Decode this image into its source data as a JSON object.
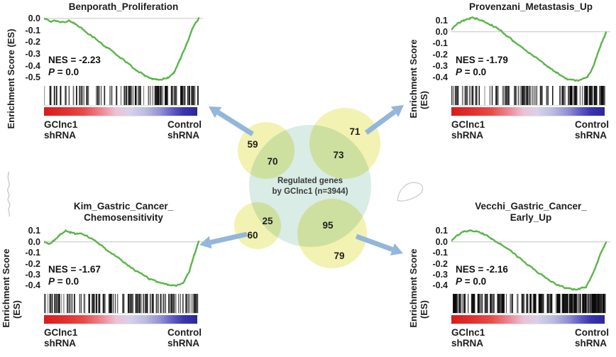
{
  "colors": {
    "curve_green": "#5cb54a",
    "zero_line_gray": "#c4c4c4",
    "separator_gray": "#e2e2e2",
    "arrow_blue": "#93b6db",
    "venn_yellow": "#f2f2b2",
    "venn_teal": "#d9ece5",
    "barcode_black": "#0a0a0a",
    "text_dark": "#1d1d1d",
    "gradient_stops": [
      [
        "#dc1a1a",
        0
      ],
      [
        "#e23030",
        14
      ],
      [
        "#e84b48",
        26
      ],
      [
        "#ee8a96",
        38
      ],
      [
        "#ecc2d4",
        47
      ],
      [
        "#d8d0ea",
        56
      ],
      [
        "#bcbce0",
        66
      ],
      [
        "#9090d4",
        76
      ],
      [
        "#5e5cc4",
        84
      ],
      [
        "#3a36ae",
        91
      ],
      [
        "#2a26a0",
        100
      ]
    ]
  },
  "venn": {
    "center_line1": "Regulated genes",
    "center_line2": "by GClnc1 (n=3944)",
    "counts": {
      "tl_out": "59",
      "tl_in": "70",
      "tr_out": "71",
      "tr_in": "73",
      "bl_out": "60",
      "bl_in": "25",
      "br_out": "79",
      "br_in": "95"
    }
  },
  "chart_data": [
    {
      "type": "line",
      "position": "top-left",
      "title_lines": [
        "Benporath_Proliferation"
      ],
      "ylabel_lines": [
        "Enrichment Score (ES)"
      ],
      "ytick_labels": [
        "0.0",
        "-0.1",
        "-0.2",
        "-0.3",
        "-0.4",
        "-0.5"
      ],
      "yticks": [
        0,
        -0.1,
        -0.2,
        -0.3,
        -0.4,
        -0.5
      ],
      "es_top": 0.035,
      "es_bottom": -0.565,
      "ylim": [
        -0.55,
        0.0
      ],
      "nes": "NES = -2.23",
      "p_sym": "P",
      "p_val": " = 0.0",
      "xlabel_left": [
        "GClnc1",
        "shRNA"
      ],
      "xlabel_right": [
        "Control",
        "shRNA"
      ],
      "x": [
        0,
        0.04,
        0.08,
        0.12,
        0.16,
        0.2,
        0.3,
        0.4,
        0.5,
        0.6,
        0.65,
        0.7,
        0.73,
        0.77,
        0.8,
        0.84,
        0.88,
        0.92,
        0.96,
        1
      ],
      "y": [
        0,
        -0.025,
        -0.02,
        -0.035,
        -0.02,
        -0.045,
        -0.14,
        -0.24,
        -0.34,
        -0.44,
        -0.48,
        -0.51,
        -0.52,
        -0.515,
        -0.5,
        -0.46,
        -0.35,
        -0.22,
        -0.09,
        0
      ],
      "barcode": {
        "seed": 7,
        "count": 100,
        "weight": 1.3,
        "right_bias": true
      }
    },
    {
      "type": "line",
      "position": "top-right",
      "title_lines": [
        "Provenzani_Metastasis_Up"
      ],
      "ylabel_lines": [
        "Enrichment Score",
        "(ES)"
      ],
      "ytick_labels": [
        "0.1",
        "0.0",
        "-0.1",
        "-0.2",
        "-0.3",
        "-0.4"
      ],
      "yticks": [
        0.1,
        0,
        -0.1,
        -0.2,
        -0.3,
        -0.4
      ],
      "es_top": 0.155,
      "es_bottom": -0.47,
      "ylim": [
        -0.43,
        0.12
      ],
      "nes": "NES = -1.79",
      "p_sym": "P",
      "p_val": " = 0.0",
      "xlabel_left": [
        "GClnc1",
        "shRNA"
      ],
      "xlabel_right": [
        "Control",
        "shRNA"
      ],
      "x": [
        0,
        0.04,
        0.08,
        0.12,
        0.16,
        0.2,
        0.26,
        0.33,
        0.4,
        0.5,
        0.6,
        0.68,
        0.75,
        0.8,
        0.84,
        0.88,
        0.91,
        0.94,
        0.97,
        1
      ],
      "y": [
        0.02,
        0.07,
        0.1,
        0.12,
        0.115,
        0.1,
        0.06,
        0,
        -0.08,
        -0.18,
        -0.28,
        -0.36,
        -0.415,
        -0.43,
        -0.425,
        -0.4,
        -0.32,
        -0.22,
        -0.1,
        -0.01
      ],
      "barcode": {
        "seed": 13,
        "count": 125,
        "weight": 1.4,
        "right_bias": true
      }
    },
    {
      "type": "line",
      "position": "bottom-left",
      "title_lines": [
        "Kim_Gastric_Cancer_",
        "Chemosensitivity"
      ],
      "ylabel_lines": [
        "Enrichment Score",
        "(ES)"
      ],
      "ytick_labels": [
        "0.1",
        "0.0",
        "-0.1",
        "-0.2",
        "-0.3",
        "-0.4"
      ],
      "yticks": [
        0.1,
        0,
        -0.1,
        -0.2,
        -0.3,
        -0.4
      ],
      "es_top": 0.155,
      "es_bottom": -0.47,
      "ylim": [
        -0.4,
        0.11
      ],
      "nes": "NES = -1.67",
      "p_sym": "P",
      "p_val": " = 0.0",
      "xlabel_left": [
        "GClnc1",
        "shRNA"
      ],
      "xlabel_right": [
        "Control",
        "shRNA"
      ],
      "x": [
        0,
        0.03,
        0.06,
        0.1,
        0.14,
        0.17,
        0.2,
        0.24,
        0.28,
        0.33,
        0.4,
        0.5,
        0.6,
        0.68,
        0.74,
        0.8,
        0.86,
        0.9,
        0.94,
        0.97,
        1
      ],
      "y": [
        0,
        -0.02,
        0.01,
        0.06,
        0.11,
        0.09,
        0.07,
        0.08,
        0.05,
        0.01,
        -0.07,
        -0.17,
        -0.27,
        -0.34,
        -0.375,
        -0.39,
        -0.4,
        -0.37,
        -0.27,
        -0.12,
        0
      ],
      "barcode": {
        "seed": 21,
        "count": 115,
        "weight": 1.4,
        "right_bias": false
      }
    },
    {
      "type": "line",
      "position": "bottom-right",
      "title_lines": [
        "Vecchi_Gastric_Cancer_",
        "Early_Up"
      ],
      "ylabel_lines": [
        "Enrichment Score",
        "(ES)"
      ],
      "ytick_labels": [
        "0.1",
        "0.0",
        "-0.1",
        "-0.2",
        "-0.3",
        "-0.4"
      ],
      "yticks": [
        0.1,
        0,
        -0.1,
        -0.2,
        -0.3,
        -0.4
      ],
      "es_top": 0.155,
      "es_bottom": -0.47,
      "ylim": [
        -0.435,
        0.1
      ],
      "nes": "NES = -2.16",
      "p_sym": "P",
      "p_val": " = 0.0",
      "xlabel_left": [
        "GClnc1",
        "shRNA"
      ],
      "xlabel_right": [
        "Control",
        "shRNA"
      ],
      "x": [
        0,
        0.04,
        0.08,
        0.12,
        0.16,
        0.2,
        0.26,
        0.32,
        0.4,
        0.5,
        0.6,
        0.68,
        0.74,
        0.79,
        0.83,
        0.87,
        0.9,
        0.93,
        0.96,
        1
      ],
      "y": [
        0.01,
        0.06,
        0.09,
        0.1,
        0.095,
        0.08,
        0.03,
        -0.02,
        -0.1,
        -0.22,
        -0.32,
        -0.39,
        -0.425,
        -0.435,
        -0.43,
        -0.41,
        -0.34,
        -0.24,
        -0.12,
        0
      ],
      "barcode": {
        "seed": 35,
        "count": 195,
        "weight": 2.0,
        "right_bias": true
      }
    },
    {
      "type": "venn",
      "center_set": {
        "label": "Regulated genes by GClnc1 (n=3944)",
        "n": 3944
      },
      "overlaps": [
        {
          "set": "Benporath_Proliferation",
          "overlap": 70,
          "outside": 59
        },
        {
          "set": "Provenzani_Metastasis_Up",
          "overlap": 73,
          "outside": 71
        },
        {
          "set": "Kim_Gastric_Cancer_Chemosensitivity",
          "overlap": 25,
          "outside": 60
        },
        {
          "set": "Vecchi_Gastric_Cancer_Early_Up",
          "overlap": 95,
          "outside": 79
        }
      ]
    }
  ]
}
